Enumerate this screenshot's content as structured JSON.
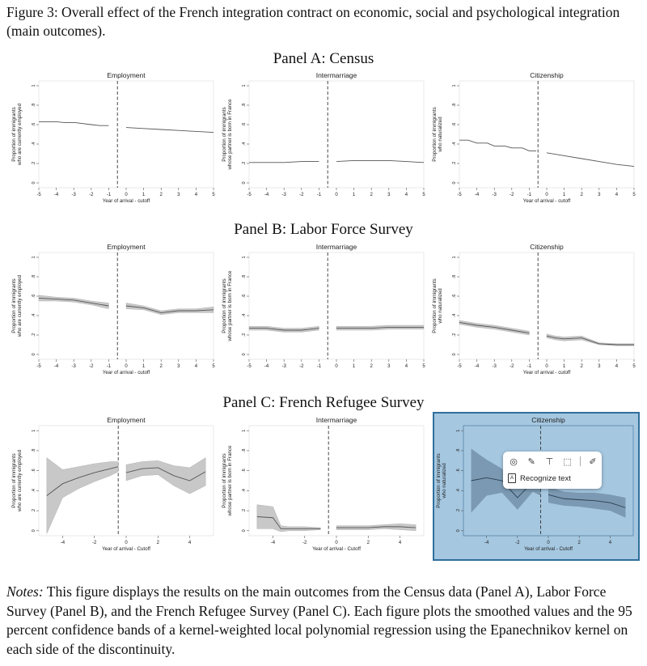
{
  "caption": "Figure 3: Overall effect of the French integration contract on economic, social and psychological integration (main outcomes).",
  "panels": [
    {
      "title": "Panel A: Census",
      "charts": [
        {
          "title": "Employment",
          "ylabel1": "Proportion of immigrants",
          "ylabel2": "who are currently employed",
          "xlabel": "Year of arrival - cutoff",
          "xticks": [
            -5,
            -4,
            -3,
            -2,
            -1,
            0,
            1,
            2,
            3,
            4,
            5
          ],
          "xmin": -5,
          "xmax": 5,
          "band": false,
          "left": [
            [
              -5,
              0.63
            ],
            [
              -4,
              0.63
            ],
            [
              -3.5,
              0.62
            ],
            [
              -2.9,
              0.62
            ],
            [
              -2,
              0.6
            ],
            [
              -1.5,
              0.59
            ],
            [
              -1,
              0.59
            ]
          ],
          "right": [
            [
              0,
              0.57
            ],
            [
              1,
              0.56
            ],
            [
              2,
              0.55
            ],
            [
              3,
              0.54
            ],
            [
              4,
              0.53
            ],
            [
              5,
              0.52
            ]
          ]
        },
        {
          "title": "Intermarriage",
          "ylabel1": "Proportion of immigrants",
          "ylabel2": "whose partner is born in France",
          "xlabel": "",
          "xticks": [
            -5,
            -4,
            -3,
            -2,
            -1,
            0,
            1,
            2,
            3,
            4,
            5
          ],
          "xmin": -5,
          "xmax": 5,
          "band": false,
          "left": [
            [
              -5,
              0.21
            ],
            [
              -4,
              0.21
            ],
            [
              -3,
              0.21
            ],
            [
              -2,
              0.22
            ],
            [
              -1,
              0.22
            ]
          ],
          "right": [
            [
              0,
              0.22
            ],
            [
              1,
              0.23
            ],
            [
              2,
              0.23
            ],
            [
              3,
              0.23
            ],
            [
              4,
              0.22
            ],
            [
              5,
              0.21
            ]
          ]
        },
        {
          "title": "Citizenship",
          "ylabel1": "Proportion of immigrants",
          "ylabel2": "who naturalized",
          "xlabel": "Year of arrival - cutoff",
          "xticks": [
            -5,
            -4,
            -3,
            -2,
            -1,
            0,
            1,
            2,
            3,
            4,
            5
          ],
          "xmin": -5,
          "xmax": 5,
          "band": false,
          "left": [
            [
              -5,
              0.44
            ],
            [
              -4.5,
              0.44
            ],
            [
              -4,
              0.41
            ],
            [
              -3.4,
              0.41
            ],
            [
              -3,
              0.38
            ],
            [
              -2.4,
              0.38
            ],
            [
              -2,
              0.36
            ],
            [
              -1.4,
              0.36
            ],
            [
              -1,
              0.33
            ],
            [
              -0.6,
              0.33
            ]
          ],
          "right": [
            [
              0,
              0.31
            ],
            [
              1,
              0.28
            ],
            [
              2,
              0.25
            ],
            [
              3,
              0.22
            ],
            [
              4,
              0.19
            ],
            [
              5,
              0.17
            ]
          ]
        }
      ]
    },
    {
      "title": "Panel B: Labor Force Survey",
      "charts": [
        {
          "title": "Employment",
          "ylabel1": "Proportion of immigrants",
          "ylabel2": "who are currently employed",
          "xlabel": "Year of arrival - cutoff",
          "xticks": [
            -5,
            -4,
            -3,
            -2,
            -1,
            0,
            1,
            2,
            3,
            4,
            5
          ],
          "xmin": -5,
          "xmax": 5,
          "band": true,
          "left": [
            [
              -5,
              0.58,
              0.03
            ],
            [
              -4,
              0.57,
              0.02
            ],
            [
              -3,
              0.56,
              0.02
            ],
            [
              -2,
              0.53,
              0.02
            ],
            [
              -1,
              0.5,
              0.03
            ]
          ],
          "right": [
            [
              0,
              0.5,
              0.03
            ],
            [
              1,
              0.48,
              0.02
            ],
            [
              2,
              0.43,
              0.02
            ],
            [
              3,
              0.45,
              0.02
            ],
            [
              4,
              0.45,
              0.02
            ],
            [
              5,
              0.46,
              0.03
            ]
          ]
        },
        {
          "title": "Intermarriage",
          "ylabel1": "Proportion of immigrants",
          "ylabel2": "whose partner is born in France",
          "xlabel": "",
          "xticks": [
            -5,
            -4,
            -3,
            -2,
            -1,
            0,
            1,
            2,
            3,
            4,
            5
          ],
          "xmin": -5,
          "xmax": 5,
          "band": true,
          "left": [
            [
              -5,
              0.27,
              0.02
            ],
            [
              -4,
              0.27,
              0.02
            ],
            [
              -3,
              0.25,
              0.02
            ],
            [
              -2,
              0.25,
              0.02
            ],
            [
              -1,
              0.27,
              0.02
            ]
          ],
          "right": [
            [
              0,
              0.27,
              0.02
            ],
            [
              1,
              0.27,
              0.02
            ],
            [
              2,
              0.27,
              0.02
            ],
            [
              3,
              0.28,
              0.02
            ],
            [
              4,
              0.28,
              0.02
            ],
            [
              5,
              0.28,
              0.02
            ]
          ]
        },
        {
          "title": "Citizenship",
          "ylabel1": "Proportion of immigrants",
          "ylabel2": "who naturalized",
          "xlabel": "Year of arrival - cutoff",
          "xticks": [
            -5,
            -4,
            -3,
            -2,
            -1,
            0,
            1,
            2,
            3,
            4,
            5
          ],
          "xmin": -5,
          "xmax": 5,
          "band": true,
          "left": [
            [
              -5,
              0.33,
              0.02
            ],
            [
              -4,
              0.3,
              0.02
            ],
            [
              -3,
              0.28,
              0.02
            ],
            [
              -2,
              0.25,
              0.02
            ],
            [
              -1,
              0.22,
              0.02
            ]
          ],
          "right": [
            [
              0,
              0.19,
              0.02
            ],
            [
              0.5,
              0.17,
              0.02
            ],
            [
              1,
              0.16,
              0.02
            ],
            [
              2,
              0.17,
              0.02
            ],
            [
              3,
              0.11,
              0.01
            ],
            [
              4,
              0.1,
              0.01
            ],
            [
              5,
              0.1,
              0.01
            ]
          ]
        }
      ]
    },
    {
      "title": "Panel C: French Refugee Survey",
      "charts": [
        {
          "title": "Employment",
          "ylabel1": "Proportion of immigrants",
          "ylabel2": "who are currently employed",
          "xlabel": "Year of arrival - Cutoff",
          "xticks": [
            -4,
            -2,
            0,
            2,
            4
          ],
          "xmin": -5.5,
          "xmax": 5.5,
          "band": true,
          "left": [
            [
              -5,
              0.35,
              0.38
            ],
            [
              -4,
              0.47,
              0.14
            ],
            [
              -3,
              0.53,
              0.11
            ],
            [
              -2,
              0.58,
              0.09
            ],
            [
              -1,
              0.62,
              0.07
            ],
            [
              -0.5,
              0.64,
              0.05
            ]
          ],
          "right": [
            [
              0,
              0.58,
              0.08
            ],
            [
              1,
              0.62,
              0.07
            ],
            [
              2,
              0.63,
              0.07
            ],
            [
              3,
              0.55,
              0.1
            ],
            [
              4,
              0.5,
              0.13
            ],
            [
              5,
              0.59,
              0.14
            ]
          ]
        },
        {
          "title": "Intermarriage",
          "ylabel1": "Proportion of immigrants",
          "ylabel2": "whose partner is born in France",
          "xlabel": "Year of arrival - Cutoff",
          "xticks": [
            -4,
            -2,
            0,
            2,
            4
          ],
          "xmin": -5.5,
          "xmax": 5.5,
          "band": true,
          "left": [
            [
              -5,
              0.14,
              0.12
            ],
            [
              -4,
              0.13,
              0.11
            ],
            [
              -3.5,
              0.02,
              0.03
            ],
            [
              -3,
              0.02,
              0.02
            ],
            [
              -2,
              0.02,
              0.02
            ],
            [
              -1,
              0.02,
              0.01
            ]
          ],
          "right": [
            [
              0,
              0.03,
              0.02
            ],
            [
              1,
              0.03,
              0.02
            ],
            [
              2,
              0.03,
              0.02
            ],
            [
              3,
              0.04,
              0.02
            ],
            [
              4,
              0.04,
              0.03
            ],
            [
              5,
              0.03,
              0.03
            ]
          ]
        },
        {
          "title": "Citizenship",
          "ylabel1": "Proportion of immigrants",
          "ylabel2": "who naturalized",
          "xlabel": "Year of arrival - Cutoff",
          "xticks": [
            -4,
            -2,
            0,
            2,
            4
          ],
          "xmin": -5.5,
          "xmax": 5.5,
          "band": true,
          "left": [
            [
              -5,
              0.5,
              0.32
            ],
            [
              -4,
              0.53,
              0.18
            ],
            [
              -3,
              0.5,
              0.12
            ],
            [
              -2,
              0.33,
              0.12
            ],
            [
              -1,
              0.49,
              0.1
            ],
            [
              -0.5,
              0.47,
              0.12
            ]
          ],
          "right": [
            [
              0,
              0.36,
              0.08
            ],
            [
              1,
              0.32,
              0.07
            ],
            [
              2,
              0.31,
              0.07
            ],
            [
              3,
              0.3,
              0.08
            ],
            [
              4,
              0.28,
              0.08
            ],
            [
              5,
              0.23,
              0.1
            ]
          ]
        }
      ]
    }
  ],
  "yticks": [
    "0",
    ".2",
    ".4",
    ".6",
    ".8",
    "1"
  ],
  "yticks_panel_c": [
    ".2",
    ".4",
    ".6",
    ".8",
    "0"
  ],
  "context_menu": {
    "recognize_text": "Recognize text",
    "icons": [
      "copy-icon",
      "pen-icon",
      "stamp-icon",
      "crop-icon",
      "edit-note-icon"
    ]
  },
  "notes": {
    "label": "Notes:",
    "text": " This figure displays the results on the main outcomes from the Census data (Panel A), Labor Force Survey (Panel B), and the French Refugee Survey (Panel C). Each figure plots the smoothed values and the 95 percent confidence bands of a kernel-weighted local polynomial regression using the Epanechnikov kernel on each side of the discontinuity."
  },
  "colors": {
    "line": "#555555",
    "band": "#c8c8c8",
    "highlight": "#6ea5cd",
    "highlight_border": "#2f6f9c"
  }
}
